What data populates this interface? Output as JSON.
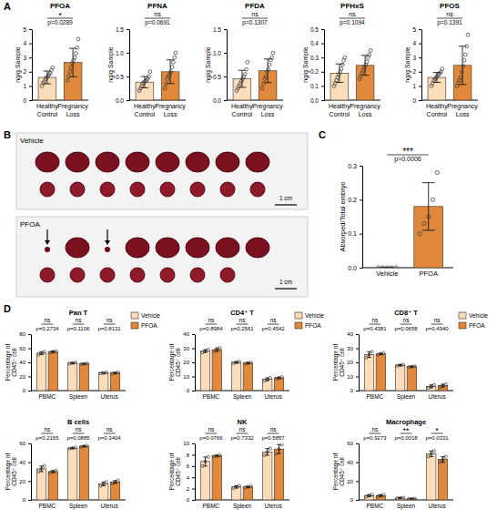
{
  "panel_labels": [
    "A",
    "B",
    "C",
    "D"
  ],
  "image": {
    "groups": [
      "Vehicle",
      "PFOA"
    ],
    "scale_bar": "1 cm"
  },
  "chart_data": [
    {
      "type": "bar",
      "title": "PFOA",
      "ylabel": "ng/g Sample",
      "categories": [
        "Healthy Control",
        "Pregnancy Loss"
      ],
      "values": [
        1.6,
        2.65
      ],
      "errors": [
        0.45,
        1.0
      ],
      "points": [
        [
          1.0,
          1.2,
          1.3,
          1.5,
          1.6,
          1.7,
          1.8,
          1.9,
          2.1,
          2.3
        ],
        [
          1.4,
          1.7,
          2.0,
          2.3,
          2.6,
          2.8,
          3.0,
          3.3,
          3.7,
          4.3
        ]
      ],
      "colors": [
        "#fbdcbb",
        "#e0893d"
      ],
      "ylim": [
        0,
        5
      ],
      "yticks": [
        0,
        1,
        2,
        3,
        4,
        5
      ],
      "annotations": [
        "*",
        "p=0.0289"
      ]
    },
    {
      "type": "bar",
      "title": "PFNA",
      "ylabel": "ng/g Sample",
      "categories": [
        "Healthy Control",
        "Pregnancy Loss"
      ],
      "values": [
        0.38,
        0.6
      ],
      "errors": [
        0.12,
        0.25
      ],
      "points": [
        [
          0.2,
          0.25,
          0.3,
          0.35,
          0.38,
          0.4,
          0.42,
          0.45,
          0.5,
          0.6
        ],
        [
          0.25,
          0.35,
          0.45,
          0.5,
          0.55,
          0.6,
          0.7,
          0.8,
          0.9,
          1.0
        ]
      ],
      "colors": [
        "#fbdcbb",
        "#e0893d"
      ],
      "ylim": [
        0,
        1.5
      ],
      "yticks": [
        {
          "value": 0,
          "label": "0.0"
        },
        0.5,
        {
          "value": 1,
          "label": "1.0"
        },
        1.5
      ],
      "annotations": [
        "ns",
        "p=0.0691"
      ]
    },
    {
      "type": "bar",
      "title": "PFDA",
      "ylabel": "ng/g Sample",
      "categories": [
        "Healthy Control",
        "Pregnancy Loss"
      ],
      "values": [
        0.45,
        0.62
      ],
      "errors": [
        0.18,
        0.25
      ],
      "points": [
        [
          0.2,
          0.25,
          0.3,
          0.35,
          0.4,
          0.45,
          0.5,
          0.55,
          0.65,
          0.8
        ],
        [
          0.25,
          0.35,
          0.45,
          0.5,
          0.6,
          0.65,
          0.75,
          0.85,
          0.9,
          1.0
        ]
      ],
      "colors": [
        "#fbdcbb",
        "#e0893d"
      ],
      "ylim": [
        0,
        1.5
      ],
      "yticks": [
        {
          "value": 0,
          "label": "0.0"
        },
        0.5,
        {
          "value": 1,
          "label": "1.0"
        },
        1.5
      ],
      "annotations": [
        "ns",
        "p=0.1307"
      ]
    },
    {
      "type": "bar",
      "title": "PFHxS",
      "ylabel": "ng/g Sample",
      "categories": [
        "Healthy Control",
        "Pregnancy Loss"
      ],
      "values": [
        0.19,
        0.245
      ],
      "errors": [
        0.065,
        0.07
      ],
      "points": [
        [
          0.1,
          0.12,
          0.14,
          0.16,
          0.18,
          0.2,
          0.22,
          0.25,
          0.28,
          0.3
        ],
        [
          0.15,
          0.17,
          0.19,
          0.21,
          0.23,
          0.25,
          0.27,
          0.3,
          0.32,
          0.35
        ]
      ],
      "colors": [
        "#fbdcbb",
        "#e0893d"
      ],
      "ylim": [
        0,
        0.5
      ],
      "yticks": [
        {
          "value": 0,
          "label": "0.0"
        },
        0.1,
        0.2,
        0.3,
        0.4,
        0.5
      ],
      "annotations": [
        "ns",
        "p=0.1094"
      ]
    },
    {
      "type": "bar",
      "title": "PFOS",
      "ylabel": "ng/g Sample",
      "categories": [
        "Healthy Control",
        "Pregnancy Loss"
      ],
      "values": [
        1.6,
        2.45
      ],
      "errors": [
        0.35,
        1.35
      ],
      "points": [
        [
          1.0,
          1.2,
          1.4,
          1.5,
          1.6,
          1.7,
          1.8,
          1.9,
          2.0,
          2.2
        ],
        [
          1.0,
          1.2,
          1.4,
          1.6,
          2.0,
          2.4,
          2.8,
          3.2,
          3.8,
          4.6
        ]
      ],
      "colors": [
        "#fbdcbb",
        "#e0893d"
      ],
      "ylim": [
        0,
        5
      ],
      "yticks": [
        0,
        1,
        2,
        3,
        4,
        5
      ],
      "annotations": [
        "ns",
        "p=0.1391"
      ]
    },
    {
      "type": "bar",
      "ylabel": "Absorped/Total embryo",
      "categories": [
        "Vehicle",
        "PFOA"
      ],
      "values": [
        0,
        0.18
      ],
      "errors": [
        0,
        0.07
      ],
      "points": [
        [
          0,
          0,
          0,
          0,
          0
        ],
        [
          0.1,
          0.13,
          0.15,
          0.2,
          0.28
        ]
      ],
      "colors": [
        "#fbdcbb",
        "#e0893d"
      ],
      "ylim": [
        0,
        0.3
      ],
      "yticks": [
        {
          "value": 0,
          "label": "0.0"
        },
        0.1,
        0.2,
        0.3
      ],
      "annotations": [
        "***",
        "p=0.0006"
      ]
    },
    {
      "type": "bar",
      "title": "Pan T",
      "ylabel": "Percentage of CD45⁺ cell",
      "categories": [
        "PBMC",
        "Spleen",
        "Uterus"
      ],
      "legend": "right",
      "ylim": [
        0,
        80
      ],
      "yticks": [
        0,
        20,
        40,
        60,
        80
      ],
      "series": [
        {
          "name": "Vehicle",
          "color": "#fbdcbb",
          "values": [
            53,
            39,
            25
          ],
          "errors": [
            2,
            0.8,
            0.6
          ],
          "points": [
            [
              51,
              53,
              55
            ],
            [
              38.3,
              39,
              39.8
            ],
            [
              24.5,
              25,
              25.6
            ]
          ]
        },
        {
          "name": "PFOA",
          "color": "#e0893d",
          "values": [
            55,
            38,
            25
          ],
          "errors": [
            1,
            0.6,
            0.8
          ],
          "points": [
            [
              54,
              55,
              56
            ],
            [
              37.5,
              38,
              38.6
            ],
            [
              24.3,
              25,
              25.8
            ]
          ]
        }
      ],
      "annotations": [
        [
          "ns",
          "p=0.2734"
        ],
        [
          "ns",
          "p=0.1106"
        ],
        [
          "ns",
          "p=0.8131"
        ]
      ]
    },
    {
      "type": "bar",
      "title": "CD4⁺ T",
      "ylabel": "Percentage of CD45⁺ cell",
      "categories": [
        "PBMC",
        "Spleen",
        "Uterus"
      ],
      "legend": "right",
      "ylim": [
        0,
        40
      ],
      "yticks": [
        0,
        10,
        20,
        30,
        40
      ],
      "series": [
        {
          "name": "Vehicle",
          "color": "#fbdcbb",
          "values": [
            28,
            20,
            8
          ],
          "errors": [
            1,
            0.5,
            1
          ],
          "points": [
            [
              27,
              28,
              29
            ],
            [
              19.5,
              20,
              20.5
            ],
            [
              7,
              8,
              9
            ]
          ]
        },
        {
          "name": "PFOA",
          "color": "#e0893d",
          "values": [
            29,
            19.5,
            9
          ],
          "errors": [
            1.2,
            0.4,
            0.5
          ],
          "points": [
            [
              28,
              29,
              30.2
            ],
            [
              19.1,
              19.5,
              19.9
            ],
            [
              8.5,
              9,
              9.5
            ]
          ]
        }
      ],
      "annotations": [
        [
          "ns",
          "p=0.8984"
        ],
        [
          "ns",
          "p=0.2561"
        ],
        [
          "ns",
          "p=0.4542"
        ]
      ]
    },
    {
      "type": "bar",
      "title": "CD8⁺ T",
      "ylabel": "Percentage of CD45⁺ cell",
      "categories": [
        "PBMC",
        "Spleen",
        "Uterus"
      ],
      "legend": "right",
      "ylim": [
        0,
        40
      ],
      "yticks": [
        0,
        10,
        20,
        30,
        40
      ],
      "series": [
        {
          "name": "Vehicle",
          "color": "#fbdcbb",
          "values": [
            25.5,
            18,
            3
          ],
          "errors": [
            2,
            0.4,
            1
          ],
          "points": [
            [
              23.5,
              25.5,
              27.5
            ],
            [
              17.6,
              18,
              18.4
            ],
            [
              2,
              3,
              4
            ]
          ]
        },
        {
          "name": "PFOA",
          "color": "#e0893d",
          "values": [
            26,
            17,
            3.5
          ],
          "errors": [
            0.5,
            0.3,
            1
          ],
          "points": [
            [
              25.5,
              26,
              26.5
            ],
            [
              16.7,
              17,
              17.3
            ],
            [
              2.5,
              3.5,
              4.5
            ]
          ]
        }
      ],
      "annotations": [
        [
          "ns",
          "p=0.4381"
        ],
        [
          "ns",
          "p=0.0658"
        ],
        [
          "ns",
          "p=0.4940"
        ]
      ]
    },
    {
      "type": "bar",
      "title": "B cells",
      "ylabel": "Percentage of CD45⁺ cell",
      "categories": [
        "PBMC",
        "Spleen",
        "Uterus"
      ],
      "ylim": [
        0,
        60
      ],
      "yticks": [
        0,
        20,
        40,
        60
      ],
      "series": [
        {
          "color": "#fbdcbb",
          "values": [
            33,
            55,
            17
          ],
          "errors": [
            3,
            0.5,
            2
          ],
          "points": [
            [
              30,
              33,
              36
            ],
            [
              54.5,
              55,
              55.5
            ],
            [
              15,
              17,
              19
            ]
          ]
        },
        {
          "color": "#e0893d",
          "values": [
            30,
            57,
            19
          ],
          "errors": [
            1,
            0.5,
            1.5
          ],
          "points": [
            [
              29,
              30,
              31
            ],
            [
              56.5,
              57,
              57.5
            ],
            [
              17.5,
              19,
              20.5
            ]
          ]
        }
      ],
      "annotations": [
        [
          "ns",
          "p=0.2165"
        ],
        [
          "ns",
          "p=0.0885"
        ],
        [
          "ns",
          "p=0.3404"
        ]
      ]
    },
    {
      "type": "bar",
      "title": "NK",
      "ylabel": "Percentage of CD45⁺ cell",
      "categories": [
        "PBMC",
        "Spleen",
        "Uterus"
      ],
      "ylim": [
        0,
        10
      ],
      "yticks": [
        0,
        2,
        4,
        6,
        8,
        10
      ],
      "series": [
        {
          "color": "#fbdcbb",
          "values": [
            6.8,
            2.3,
            8.5
          ],
          "errors": [
            0.8,
            0.2,
            0.6
          ],
          "points": [
            [
              6,
              6.8,
              7.6
            ],
            [
              2.1,
              2.3,
              2.5
            ],
            [
              7.9,
              8.5,
              9.1
            ]
          ]
        },
        {
          "color": "#e0893d",
          "values": [
            7.8,
            2.3,
            9
          ],
          "errors": [
            0.1,
            0.1,
            0.8
          ],
          "points": [
            [
              7.7,
              7.8,
              7.9
            ],
            [
              2.2,
              2.3,
              2.4
            ],
            [
              8.2,
              9,
              9.8
            ]
          ]
        }
      ],
      "annotations": [
        [
          "ns",
          "p=0.0766"
        ],
        [
          "ns",
          "p=0.7332"
        ],
        [
          "ns",
          "p=0.5857"
        ]
      ]
    },
    {
      "type": "bar",
      "title": "Macrophage",
      "ylabel": "Percentage of CD45⁺ cell",
      "categories": [
        "PBMC",
        "Spleen",
        "Uterus"
      ],
      "ylim": [
        0,
        60
      ],
      "yticks": [
        0,
        20,
        40,
        60
      ],
      "series": [
        {
          "color": "#fbdcbb",
          "values": [
            4.5,
            2,
            49
          ],
          "errors": [
            1,
            0.3,
            3
          ],
          "points": [
            [
              3.5,
              4.5,
              5.5
            ],
            [
              1.7,
              2,
              2.3
            ],
            [
              46,
              49,
              52
            ]
          ]
        },
        {
          "color": "#e0893d",
          "values": [
            4.5,
            1.2,
            43
          ],
          "errors": [
            0.8,
            0.2,
            3
          ],
          "points": [
            [
              3.7,
              4.5,
              5.3
            ],
            [
              1,
              1.2,
              1.4
            ],
            [
              40,
              43,
              46
            ]
          ]
        }
      ],
      "annotations": [
        [
          "ns",
          "p=0.9273"
        ],
        [
          "**",
          "p=0.0018"
        ],
        [
          "*",
          "p=0.0331"
        ]
      ]
    }
  ]
}
